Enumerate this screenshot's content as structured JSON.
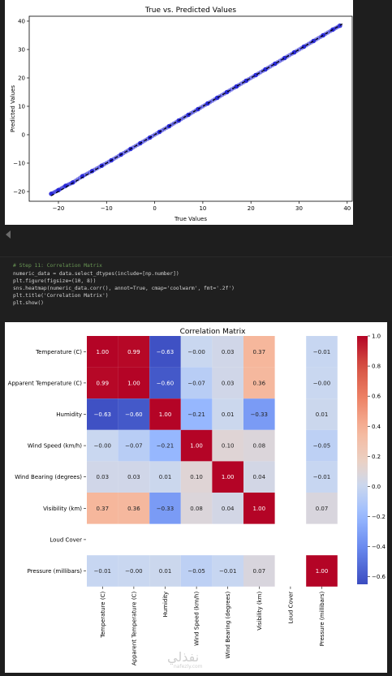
{
  "scatter": {
    "title": "True vs. Predicted Values",
    "xlabel": "True Values",
    "ylabel": "Predicted Values",
    "x_ticks": [
      "−20",
      "−10",
      "0",
      "10",
      "20",
      "30",
      "40"
    ],
    "y_ticks": [
      "−20",
      "−10",
      "0",
      "10",
      "20",
      "30",
      "40"
    ]
  },
  "code": {
    "lines": [
      "# Step 11: Correlation Matrix",
      "numeric_data = data.select_dtypes(include=[np.number])",
      "plt.figure(figsize=(10, 8))",
      "sns.heatmap(numeric_data.corr(), annot=True, cmap='coolwarm', fmt='.2f')",
      "plt.title('Correlation Matrix')",
      "plt.show()"
    ]
  },
  "heatmap": {
    "title": "Correlation Matrix",
    "labels": [
      "Temperature (C)",
      "Apparent Temperature (C)",
      "Humidity",
      "Wind Speed (km/h)",
      "Wind Bearing (degrees)",
      "Visibility (km)",
      "Loud Cover",
      "Pressure (millibars)"
    ],
    "colorbar_ticks": [
      "1.0",
      "0.8",
      "0.6",
      "0.4",
      "0.2",
      "0.0",
      "−0.2",
      "−0.4",
      "−0.6"
    ]
  },
  "watermark": {
    "text": "نفذلي",
    "sub": "nafezly.com"
  },
  "chart_data": [
    {
      "type": "scatter",
      "title": "True vs. Predicted Values",
      "xlabel": "True Values",
      "ylabel": "Predicted Values",
      "xlim": [
        -23,
        41
      ],
      "ylim": [
        -23,
        42
      ],
      "x": [
        -21.5,
        -20,
        -18.5,
        -17,
        -15,
        -13,
        -11,
        -9,
        -7,
        -5,
        -3,
        -1,
        1,
        3,
        5,
        7,
        9,
        11,
        13,
        15,
        17,
        19,
        21,
        23,
        25,
        27,
        29,
        31,
        33,
        35,
        37,
        38.5
      ],
      "y": [
        -20.8,
        -19.5,
        -18,
        -16.8,
        -14.6,
        -12.8,
        -10.9,
        -9,
        -7,
        -5,
        -3,
        -1,
        1,
        3,
        5,
        7,
        9,
        11,
        13,
        15,
        17,
        19,
        21,
        23,
        25,
        27,
        29,
        31,
        33,
        35,
        37,
        38.4
      ],
      "reference_line": "y = x (dashed)",
      "colors": {
        "points": "#1f1fd6",
        "line": "#000000"
      },
      "grid": false
    },
    {
      "type": "heatmap",
      "title": "Correlation Matrix",
      "rows": [
        "Temperature (C)",
        "Apparent Temperature (C)",
        "Humidity",
        "Wind Speed (km/h)",
        "Wind Bearing (degrees)",
        "Visibility (km)",
        "Loud Cover",
        "Pressure (millibars)"
      ],
      "cols": [
        "Temperature (C)",
        "Apparent Temperature (C)",
        "Humidity",
        "Wind Speed (km/h)",
        "Wind Bearing (degrees)",
        "Visibility (km)",
        "Loud Cover",
        "Pressure (millibars)"
      ],
      "values": [
        [
          1.0,
          0.99,
          -0.63,
          -0.0,
          0.03,
          0.37,
          null,
          -0.01
        ],
        [
          0.99,
          1.0,
          -0.6,
          -0.07,
          0.03,
          0.36,
          null,
          -0.0
        ],
        [
          -0.63,
          -0.6,
          1.0,
          -0.21,
          0.01,
          -0.33,
          null,
          0.01
        ],
        [
          -0.0,
          -0.07,
          -0.21,
          1.0,
          0.1,
          0.08,
          null,
          -0.05
        ],
        [
          0.03,
          0.03,
          0.01,
          0.1,
          1.0,
          0.04,
          null,
          -0.01
        ],
        [
          0.37,
          0.36,
          -0.33,
          0.08,
          0.04,
          1.0,
          null,
          0.07
        ],
        [
          null,
          null,
          null,
          null,
          null,
          null,
          null,
          null
        ],
        [
          -0.01,
          -0.0,
          0.01,
          -0.05,
          -0.01,
          0.07,
          null,
          1.0
        ]
      ],
      "colorbar_range": [
        -0.65,
        1.0
      ],
      "cmap": "coolwarm",
      "fmt": ".2f"
    }
  ]
}
